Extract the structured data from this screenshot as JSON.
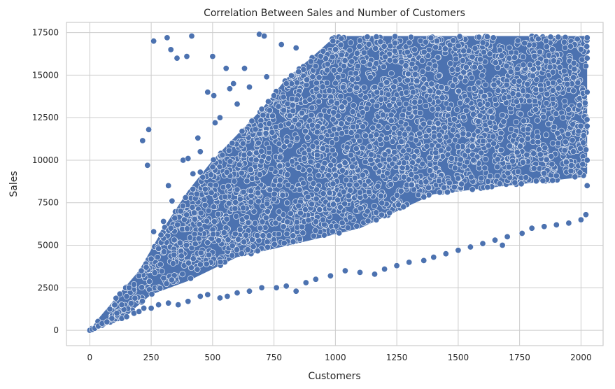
{
  "chart_data": {
    "type": "scatter",
    "title": "Correlation Between Sales and Number of Customers",
    "xlabel": "Customers",
    "ylabel": "Sales",
    "xlim": [
      -95,
      2090
    ],
    "ylim": [
      -900,
      18100
    ],
    "xticks": [
      0,
      250,
      500,
      750,
      1000,
      1250,
      1500,
      1750,
      2000
    ],
    "yticks": [
      0,
      2500,
      5000,
      7500,
      10000,
      12500,
      15000,
      17500
    ],
    "grid": true,
    "legend": "none",
    "marker_color": "#4c72b0",
    "density_region": {
      "polygon": [
        [
          0,
          0
        ],
        [
          60,
          300
        ],
        [
          150,
          900
        ],
        [
          250,
          2100
        ],
        [
          400,
          2900
        ],
        [
          600,
          4300
        ],
        [
          900,
          5300
        ],
        [
          1100,
          6000
        ],
        [
          1400,
          8000
        ],
        [
          1700,
          8500
        ],
        [
          2000,
          9000
        ],
        [
          2025,
          9200
        ],
        [
          2025,
          17300
        ],
        [
          1000,
          17300
        ],
        [
          900,
          16000
        ],
        [
          800,
          14800
        ],
        [
          700,
          13000
        ],
        [
          600,
          11500
        ],
        [
          500,
          10000
        ],
        [
          400,
          8200
        ],
        [
          300,
          6000
        ],
        [
          200,
          3500
        ],
        [
          100,
          1800
        ],
        [
          30,
          600
        ]
      ]
    },
    "edge_points": [
      [
        0,
        0
      ],
      [
        10,
        50
      ],
      [
        20,
        120
      ],
      [
        35,
        250
      ],
      [
        50,
        400
      ],
      [
        70,
        500
      ],
      [
        90,
        700
      ],
      [
        110,
        1000
      ],
      [
        130,
        1500
      ],
      [
        150,
        2000
      ],
      [
        160,
        2500
      ],
      [
        180,
        2700
      ],
      [
        200,
        3200
      ],
      [
        210,
        3500
      ],
      [
        230,
        3700
      ],
      [
        250,
        4200
      ],
      [
        280,
        4800
      ],
      [
        300,
        5400
      ],
      [
        330,
        6000
      ],
      [
        360,
        7000
      ],
      [
        390,
        7800
      ],
      [
        420,
        8300
      ],
      [
        460,
        9000
      ],
      [
        500,
        9600
      ],
      [
        540,
        10300
      ],
      [
        580,
        11000
      ],
      [
        620,
        11700
      ],
      [
        660,
        12300
      ],
      [
        700,
        13000
      ],
      [
        750,
        13800
      ],
      [
        800,
        14500
      ],
      [
        850,
        15200
      ],
      [
        900,
        15800
      ],
      [
        950,
        16400
      ],
      [
        990,
        17000
      ],
      [
        130,
        700
      ],
      [
        150,
        800
      ],
      [
        180,
        1000
      ],
      [
        200,
        1100
      ],
      [
        220,
        1300
      ],
      [
        250,
        1300
      ],
      [
        280,
        1500
      ],
      [
        320,
        1600
      ],
      [
        360,
        1500
      ],
      [
        400,
        1700
      ],
      [
        450,
        2000
      ],
      [
        480,
        2100
      ],
      [
        530,
        1900
      ],
      [
        560,
        2000
      ],
      [
        600,
        2200
      ],
      [
        650,
        2300
      ],
      [
        700,
        2500
      ],
      [
        760,
        2500
      ],
      [
        800,
        2600
      ],
      [
        840,
        2300
      ],
      [
        880,
        2800
      ],
      [
        920,
        3000
      ],
      [
        980,
        3200
      ],
      [
        1040,
        3500
      ],
      [
        1100,
        3400
      ],
      [
        1160,
        3300
      ],
      [
        1200,
        3600
      ],
      [
        1250,
        3800
      ],
      [
        1300,
        4000
      ],
      [
        1360,
        4100
      ],
      [
        1400,
        4300
      ],
      [
        1450,
        4500
      ],
      [
        1500,
        4700
      ],
      [
        1550,
        4900
      ],
      [
        1600,
        5100
      ],
      [
        1650,
        5300
      ],
      [
        1680,
        5000
      ],
      [
        1700,
        5500
      ],
      [
        1760,
        5700
      ],
      [
        1800,
        6000
      ],
      [
        1850,
        6100
      ],
      [
        1900,
        6200
      ],
      [
        1950,
        6300
      ],
      [
        2000,
        6500
      ],
      [
        2020,
        6800
      ],
      [
        2025,
        8500
      ],
      [
        2025,
        10000
      ],
      [
        2025,
        12000
      ],
      [
        2025,
        14000
      ],
      [
        2025,
        16000
      ],
      [
        2025,
        17200
      ]
    ],
    "outliers": [
      [
        215,
        11150
      ],
      [
        240,
        11800
      ],
      [
        235,
        9700
      ],
      [
        260,
        17000
      ],
      [
        315,
        17200
      ],
      [
        330,
        16500
      ],
      [
        355,
        16000
      ],
      [
        395,
        16100
      ],
      [
        415,
        17300
      ],
      [
        440,
        11300
      ],
      [
        450,
        10500
      ],
      [
        480,
        14000
      ],
      [
        500,
        16100
      ],
      [
        505,
        13800
      ],
      [
        510,
        12200
      ],
      [
        530,
        12500
      ],
      [
        555,
        15400
      ],
      [
        570,
        14200
      ],
      [
        585,
        14500
      ],
      [
        600,
        13300
      ],
      [
        630,
        15400
      ],
      [
        650,
        14300
      ],
      [
        690,
        17400
      ],
      [
        710,
        17300
      ],
      [
        720,
        14900
      ],
      [
        780,
        16800
      ],
      [
        840,
        16600
      ],
      [
        320,
        8500
      ],
      [
        335,
        7600
      ],
      [
        370,
        7000
      ],
      [
        260,
        5800
      ],
      [
        290,
        5600
      ],
      [
        300,
        6400
      ],
      [
        380,
        10000
      ],
      [
        400,
        10100
      ],
      [
        420,
        9200
      ],
      [
        450,
        9300
      ],
      [
        470,
        8300
      ]
    ]
  }
}
